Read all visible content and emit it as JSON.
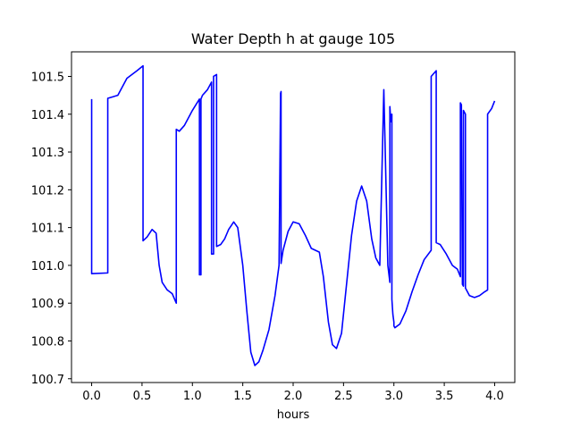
{
  "chart_data": {
    "type": "line",
    "title": "Water Depth h at gauge 105",
    "xlabel": "hours",
    "ylabel": "",
    "xlim": [
      -0.2,
      4.2
    ],
    "ylim": [
      100.69,
      101.565
    ],
    "xticks": [
      0.0,
      0.5,
      1.0,
      1.5,
      2.0,
      2.5,
      3.0,
      3.5,
      4.0
    ],
    "xtick_labels": [
      "0.0",
      "0.5",
      "1.0",
      "1.5",
      "2.0",
      "2.5",
      "3.0",
      "3.5",
      "4.0"
    ],
    "yticks": [
      100.7,
      100.8,
      100.9,
      101.0,
      101.1,
      101.2,
      101.3,
      101.4,
      101.5
    ],
    "ytick_labels": [
      "100.7",
      "100.8",
      "100.9",
      "101.0",
      "101.1",
      "101.2",
      "101.3",
      "101.4",
      "101.5"
    ],
    "grid": false,
    "line_color": "#0000ff",
    "series": [
      {
        "name": "",
        "x": [
          0.0,
          0.0,
          0.16,
          0.16,
          0.26,
          0.35,
          0.45,
          0.51,
          0.51,
          0.55,
          0.6,
          0.64,
          0.67,
          0.7,
          0.75,
          0.8,
          0.84,
          0.84,
          0.87,
          0.92,
          1.0,
          1.07,
          1.07,
          1.085,
          1.085,
          1.1,
          1.15,
          1.19,
          1.19,
          1.21,
          1.21,
          1.24,
          1.24,
          1.28,
          1.32,
          1.36,
          1.41,
          1.45,
          1.5,
          1.54,
          1.58,
          1.62,
          1.66,
          1.7,
          1.76,
          1.82,
          1.86,
          1.875,
          1.88,
          1.88,
          1.9,
          1.95,
          2.0,
          2.06,
          2.12,
          2.18,
          2.22,
          2.26,
          2.3,
          2.35,
          2.39,
          2.43,
          2.48,
          2.53,
          2.58,
          2.63,
          2.68,
          2.73,
          2.78,
          2.82,
          2.86,
          2.9,
          2.94,
          2.96,
          2.96,
          2.97,
          2.98,
          2.98,
          2.99,
          3.0,
          3.0,
          3.01,
          3.06,
          3.12,
          3.18,
          3.24,
          3.3,
          3.37,
          3.37,
          3.42,
          3.42,
          3.46,
          3.52,
          3.58,
          3.63,
          3.66,
          3.66,
          3.67,
          3.68,
          3.69,
          3.69,
          3.71,
          3.71,
          3.75,
          3.8,
          3.85,
          3.9,
          3.93,
          3.93,
          3.97,
          4.0
        ],
        "y": [
          101.44,
          100.978,
          100.98,
          101.442,
          101.45,
          101.495,
          101.515,
          101.528,
          101.065,
          101.075,
          101.095,
          101.085,
          101.0,
          100.955,
          100.935,
          100.925,
          100.9,
          101.36,
          101.355,
          101.37,
          101.41,
          101.44,
          100.975,
          100.975,
          101.44,
          101.45,
          101.465,
          101.485,
          101.03,
          101.03,
          101.5,
          101.505,
          101.05,
          101.055,
          101.07,
          101.095,
          101.115,
          101.1,
          101.0,
          100.88,
          100.77,
          100.735,
          100.745,
          100.775,
          100.83,
          100.92,
          101.0,
          101.455,
          101.46,
          101.005,
          101.04,
          101.09,
          101.115,
          101.11,
          101.08,
          101.045,
          101.04,
          101.035,
          100.97,
          100.85,
          100.79,
          100.78,
          100.82,
          100.95,
          101.08,
          101.17,
          101.21,
          101.17,
          101.07,
          101.02,
          101.0,
          101.465,
          101.0,
          100.955,
          101.42,
          101.38,
          101.4,
          100.91,
          100.87,
          100.85,
          100.84,
          100.835,
          100.845,
          100.88,
          100.93,
          100.975,
          101.015,
          101.04,
          101.5,
          101.515,
          101.06,
          101.055,
          101.03,
          101.0,
          100.99,
          100.97,
          101.43,
          101.425,
          100.95,
          100.945,
          101.41,
          101.4,
          100.94,
          100.92,
          100.915,
          100.92,
          100.93,
          100.935,
          101.4,
          101.415,
          101.435
        ]
      }
    ]
  }
}
